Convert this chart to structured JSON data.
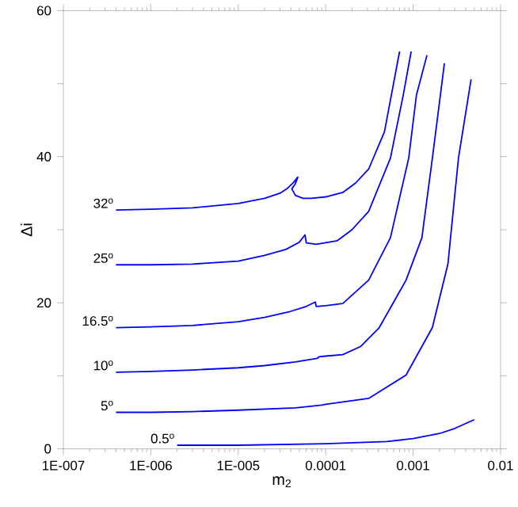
{
  "chart_data": {
    "type": "line",
    "xlabel": "m$_{2}$",
    "ylabel": "Δi",
    "log": "x",
    "xlim": [
      1e-07,
      0.01
    ],
    "ylim": [
      0,
      60
    ],
    "xticks": [
      {
        "value": 1e-07,
        "label": "1E-007"
      },
      {
        "value": 1e-06,
        "label": "1E-006"
      },
      {
        "value": 1e-05,
        "label": "1E-005"
      },
      {
        "value": 0.0001,
        "label": "0.0001"
      },
      {
        "value": 0.001,
        "label": "0.001"
      },
      {
        "value": 0.01,
        "label": "0.01"
      }
    ],
    "yticks": [
      0,
      {
        "value": 10,
        "label": null
      },
      20,
      {
        "value": 30,
        "label": null
      },
      40,
      {
        "value": 50,
        "label": null
      },
      60
    ],
    "grid": false,
    "legend": false,
    "marker": "none",
    "line_style": "solid",
    "series": [
      {
        "name": "32$^{o}$",
        "color": "#0000ff",
        "x": [
          4e-07,
          1e-06,
          3e-06,
          1e-05,
          2e-05,
          3e-05,
          3.6e-05,
          4.3e-05,
          4.8e-05,
          4.5e-05,
          4.1e-05,
          4.5e-05,
          5.5e-05,
          6.8e-05,
          0.0001,
          0.000157,
          0.00022,
          0.00031,
          0.00047,
          0.0007
        ],
        "values": [
          32.7,
          32.8,
          33.0,
          33.6,
          34.3,
          35.0,
          35.6,
          36.5,
          37.2,
          36.3,
          35.6,
          34.7,
          34.3,
          34.3,
          34.5,
          35.1,
          36.4,
          38.3,
          43.4,
          54.4
        ]
      },
      {
        "name": "25$^{o}$",
        "color": "#0000ff",
        "x": [
          4e-07,
          1e-06,
          3e-06,
          1e-05,
          2e-05,
          3.5e-05,
          5e-05,
          5.8e-05,
          6e-05,
          7.8e-05,
          0.000136,
          0.0002,
          0.00031,
          0.00055,
          0.00077,
          0.00095
        ],
        "values": [
          25.2,
          25.2,
          25.3,
          25.7,
          26.5,
          27.3,
          28.3,
          29.3,
          28.2,
          28.0,
          28.5,
          30.0,
          32.5,
          39.8,
          48.4,
          54.4
        ]
      },
      {
        "name": "16.5$^{o}$",
        "color": "#0000ff",
        "x": [
          4e-07,
          1e-06,
          3e-06,
          1e-05,
          2e-05,
          3.9e-05,
          6e-05,
          7.6e-05,
          7.8e-05,
          0.0001,
          0.000157,
          0.00031,
          0.00055,
          0.00089,
          0.00109,
          0.00144
        ],
        "values": [
          16.6,
          16.7,
          16.9,
          17.4,
          18.0,
          18.8,
          19.5,
          20.1,
          19.5,
          19.6,
          19.9,
          23.1,
          28.9,
          39.8,
          48.4,
          53.9
        ]
      },
      {
        "name": "10$^{o}$",
        "color": "#0000ff",
        "x": [
          4e-07,
          1e-06,
          3e-06,
          1e-05,
          2e-05,
          4.5e-05,
          8e-05,
          8.4e-05,
          0.0001,
          0.000157,
          0.00025,
          0.00041,
          0.00083,
          0.00126,
          0.00166,
          0.00228
        ],
        "values": [
          10.5,
          10.6,
          10.8,
          11.1,
          11.4,
          11.9,
          12.4,
          12.6,
          12.7,
          12.9,
          14.0,
          16.6,
          23.1,
          28.9,
          39.8,
          52.8
        ]
      },
      {
        "name": "5$^{o}$",
        "color": "#0000ff",
        "x": [
          4e-07,
          1e-06,
          3e-06,
          1e-05,
          4.5e-05,
          9e-05,
          0.0001,
          0.00031,
          0.00083,
          0.00166,
          0.0025,
          0.0033,
          0.0046
        ],
        "values": [
          5.0,
          5.0,
          5.1,
          5.3,
          5.6,
          6.0,
          6.1,
          6.9,
          10.1,
          16.6,
          25.3,
          39.8,
          50.6
        ]
      },
      {
        "name": "0.5$^{o}$",
        "color": "#0000ff",
        "x": [
          2e-06,
          1e-05,
          0.0001,
          0.0005,
          0.001,
          0.002,
          0.003,
          0.005
        ],
        "values": [
          0.5,
          0.5,
          0.7,
          1.0,
          1.4,
          2.1,
          2.8,
          4.0
        ]
      }
    ]
  }
}
